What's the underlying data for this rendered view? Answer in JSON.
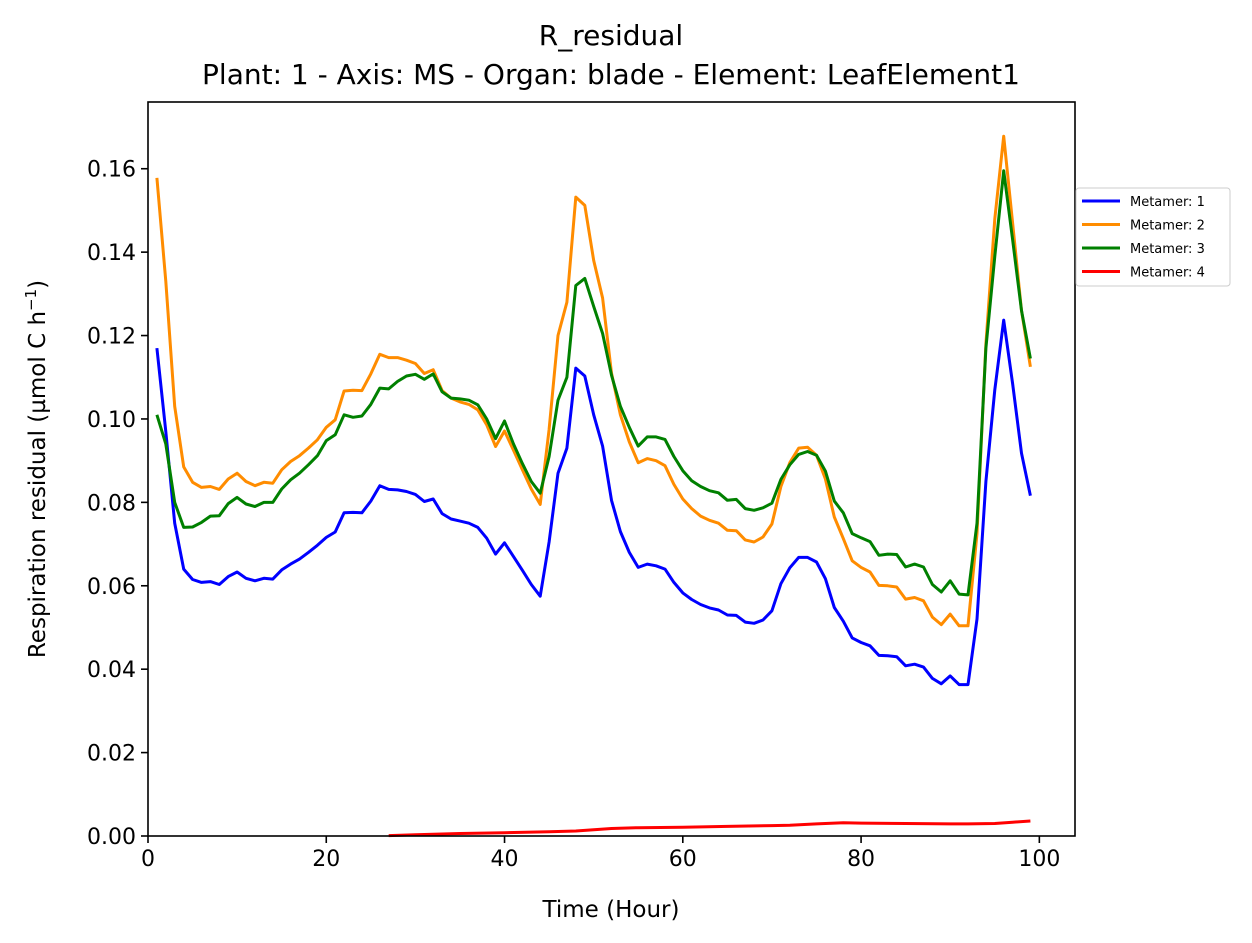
{
  "chart_data": {
    "type": "line",
    "title": "R_residual",
    "subtitle": "Plant: 1 - Axis: MS - Organ: blade - Element: LeafElement1",
    "xlabel": "Time (Hour)",
    "ylabel": "Respiration residual (µmol C h",
    "ylabel_sup": "−1",
    "ylabel_tail": ")",
    "xlim": [
      0,
      104
    ],
    "ylim": [
      0,
      0.176
    ],
    "x_ticks": [
      0,
      20,
      40,
      60,
      80,
      100
    ],
    "x_tick_labels": [
      "0",
      "20",
      "40",
      "60",
      "80",
      "100"
    ],
    "y_ticks": [
      0,
      0.02,
      0.04,
      0.06,
      0.08,
      0.1,
      0.12,
      0.14,
      0.16
    ],
    "y_tick_labels": [
      "0.00",
      "0.02",
      "0.04",
      "0.06",
      "0.08",
      "0.10",
      "0.12",
      "0.14",
      "0.16"
    ],
    "grid": false,
    "legend_position": "outside right",
    "series": [
      {
        "name": "Metamer: 1",
        "color": "#0000ff",
        "x": [
          1,
          2,
          3,
          4,
          5,
          6,
          7,
          8,
          9,
          10,
          11,
          12,
          13,
          14,
          15,
          16,
          17,
          18,
          19,
          20,
          21,
          22,
          23,
          24,
          25,
          26,
          27,
          28,
          29,
          30,
          31,
          32,
          33,
          34,
          35,
          36,
          37,
          38,
          39,
          40,
          41,
          42,
          43,
          44,
          45,
          46,
          47,
          48,
          49,
          50,
          51,
          52,
          53,
          54,
          55,
          56,
          57,
          58,
          59,
          60,
          61,
          62,
          63,
          64,
          65,
          66,
          67,
          68,
          69,
          70,
          71,
          72,
          73,
          74,
          75,
          76,
          77,
          78,
          79,
          80,
          81,
          82,
          83,
          84,
          85,
          86,
          87,
          88,
          89,
          90,
          91,
          92,
          93,
          94,
          95,
          96,
          97,
          98,
          99
        ],
        "y": [
          0.117,
          0.097,
          0.075,
          0.064,
          0.0615,
          0.0608,
          0.061,
          0.0603,
          0.0622,
          0.0633,
          0.0618,
          0.0612,
          0.0618,
          0.0616,
          0.0638,
          0.0652,
          0.0664,
          0.068,
          0.0697,
          0.0716,
          0.0729,
          0.0775,
          0.0776,
          0.0775,
          0.0803,
          0.084,
          0.0831,
          0.083,
          0.0826,
          0.0819,
          0.0802,
          0.0808,
          0.0773,
          0.076,
          0.0755,
          0.075,
          0.074,
          0.0714,
          0.0676,
          0.0703,
          0.067,
          0.0637,
          0.0603,
          0.0575,
          0.0705,
          0.087,
          0.093,
          0.1122,
          0.1103,
          0.101,
          0.0935,
          0.0805,
          0.073,
          0.068,
          0.0644,
          0.0652,
          0.0648,
          0.064,
          0.0608,
          0.0583,
          0.0567,
          0.0555,
          0.0547,
          0.0542,
          0.053,
          0.0529,
          0.0513,
          0.051,
          0.0518,
          0.054,
          0.0605,
          0.0643,
          0.0668,
          0.0668,
          0.0657,
          0.0617,
          0.0548,
          0.0515,
          0.0475,
          0.0464,
          0.0456,
          0.0433,
          0.0432,
          0.043,
          0.0408,
          0.0412,
          0.0405,
          0.0378,
          0.0365,
          0.0384,
          0.0363,
          0.0363,
          0.052,
          0.085,
          0.107,
          0.1237,
          0.1085,
          0.0918,
          0.0816
        ]
      },
      {
        "name": "Metamer: 2",
        "color": "#ff8c00",
        "x": [
          1,
          2,
          3,
          4,
          5,
          6,
          7,
          8,
          9,
          10,
          11,
          12,
          13,
          14,
          15,
          16,
          17,
          18,
          19,
          20,
          21,
          22,
          23,
          24,
          25,
          26,
          27,
          28,
          29,
          30,
          31,
          32,
          33,
          34,
          35,
          36,
          37,
          38,
          39,
          40,
          41,
          42,
          43,
          44,
          45,
          46,
          47,
          48,
          49,
          50,
          51,
          52,
          53,
          54,
          55,
          56,
          57,
          58,
          59,
          60,
          61,
          62,
          63,
          64,
          65,
          66,
          67,
          68,
          69,
          70,
          71,
          72,
          73,
          74,
          75,
          76,
          77,
          78,
          79,
          80,
          81,
          82,
          83,
          84,
          85,
          86,
          87,
          88,
          89,
          90,
          91,
          92,
          93,
          94,
          95,
          96,
          97,
          98,
          99
        ],
        "y": [
          0.1578,
          0.133,
          0.103,
          0.0885,
          0.0848,
          0.0836,
          0.0838,
          0.0831,
          0.0856,
          0.087,
          0.085,
          0.084,
          0.0848,
          0.0846,
          0.0878,
          0.0898,
          0.0912,
          0.093,
          0.095,
          0.098,
          0.0998,
          0.1067,
          0.1069,
          0.1068,
          0.1108,
          0.1155,
          0.1147,
          0.1147,
          0.1141,
          0.1133,
          0.1109,
          0.1118,
          0.1068,
          0.105,
          0.1041,
          0.1035,
          0.1022,
          0.0986,
          0.0934,
          0.0971,
          0.0925,
          0.0878,
          0.0832,
          0.0795,
          0.0975,
          0.12,
          0.128,
          0.1532,
          0.1512,
          0.138,
          0.129,
          0.111,
          0.101,
          0.0945,
          0.0895,
          0.0905,
          0.09,
          0.0888,
          0.0843,
          0.0808,
          0.0785,
          0.0767,
          0.0757,
          0.075,
          0.0733,
          0.0732,
          0.071,
          0.0705,
          0.0717,
          0.0748,
          0.0838,
          0.0895,
          0.093,
          0.0932,
          0.0913,
          0.0856,
          0.0765,
          0.0713,
          0.066,
          0.0644,
          0.0633,
          0.0601,
          0.06,
          0.0597,
          0.0568,
          0.0572,
          0.0564,
          0.0525,
          0.0507,
          0.0532,
          0.0504,
          0.0504,
          0.0725,
          0.118,
          0.148,
          0.1678,
          0.147,
          0.126,
          0.1125
        ]
      },
      {
        "name": "Metamer: 3",
        "color": "#008000",
        "x": [
          1,
          2,
          3,
          4,
          5,
          6,
          7,
          8,
          9,
          10,
          11,
          12,
          13,
          14,
          15,
          16,
          17,
          18,
          19,
          20,
          21,
          22,
          23,
          24,
          25,
          26,
          27,
          28,
          29,
          30,
          31,
          32,
          33,
          34,
          35,
          36,
          37,
          38,
          39,
          40,
          41,
          42,
          43,
          44,
          45,
          46,
          47,
          48,
          49,
          50,
          51,
          52,
          53,
          54,
          55,
          56,
          57,
          58,
          59,
          60,
          61,
          62,
          63,
          64,
          65,
          66,
          67,
          68,
          69,
          70,
          71,
          72,
          73,
          74,
          75,
          76,
          77,
          78,
          79,
          80,
          81,
          82,
          83,
          84,
          85,
          86,
          87,
          88,
          89,
          90,
          91,
          92,
          93,
          94,
          95,
          96,
          97,
          98,
          99
        ],
        "y": [
          0.101,
          0.094,
          0.08,
          0.074,
          0.0741,
          0.0752,
          0.0767,
          0.0768,
          0.0797,
          0.0812,
          0.0796,
          0.079,
          0.08,
          0.08,
          0.0832,
          0.0854,
          0.087,
          0.089,
          0.0912,
          0.0948,
          0.0962,
          0.101,
          0.1004,
          0.1007,
          0.1035,
          0.1074,
          0.1072,
          0.109,
          0.1103,
          0.1107,
          0.1095,
          0.1108,
          0.1065,
          0.105,
          0.1048,
          0.1045,
          0.1034,
          0.1,
          0.0953,
          0.0995,
          0.094,
          0.0893,
          0.085,
          0.0822,
          0.091,
          0.1045,
          0.11,
          0.132,
          0.1337,
          0.127,
          0.1205,
          0.1105,
          0.103,
          0.098,
          0.0935,
          0.0957,
          0.0957,
          0.0951,
          0.091,
          0.0876,
          0.0852,
          0.0838,
          0.0828,
          0.0823,
          0.0805,
          0.0807,
          0.0785,
          0.0781,
          0.0787,
          0.0798,
          0.0855,
          0.089,
          0.0915,
          0.0922,
          0.0913,
          0.0875,
          0.0803,
          0.0775,
          0.0725,
          0.0715,
          0.0706,
          0.0673,
          0.0676,
          0.0675,
          0.0645,
          0.0652,
          0.0645,
          0.0603,
          0.0585,
          0.0612,
          0.058,
          0.0578,
          0.075,
          0.117,
          0.139,
          0.1595,
          0.143,
          0.126,
          0.1145
        ]
      },
      {
        "name": "Metamer: 4",
        "color": "#ff0000",
        "x": [
          27,
          30,
          35,
          40,
          45,
          48,
          50,
          52,
          55,
          60,
          65,
          70,
          72,
          75,
          77,
          78,
          80,
          85,
          90,
          92,
          95,
          97,
          99
        ],
        "y": [
          0.0001,
          0.0003,
          0.0006,
          0.0008,
          0.001,
          0.0012,
          0.0015,
          0.0018,
          0.002,
          0.0021,
          0.0023,
          0.0025,
          0.0026,
          0.0029,
          0.0031,
          0.0032,
          0.0031,
          0.003,
          0.0029,
          0.0029,
          0.003,
          0.0033,
          0.0036
        ]
      }
    ]
  }
}
